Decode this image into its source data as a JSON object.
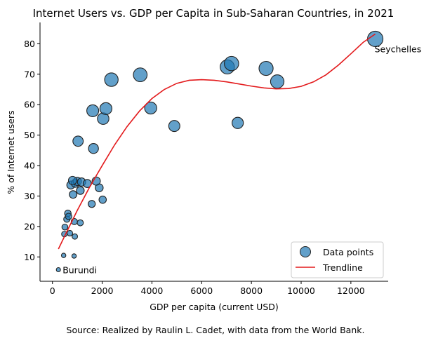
{
  "chart_data": {
    "type": "scatter",
    "title": "Internet Users vs. GDP per Capita in Sub-Saharan Countries, in 2021",
    "xlabel": "GDP per capita (current USD)",
    "ylabel": "% of Internet users",
    "xlim": [
      -500,
      13500
    ],
    "ylim": [
      2,
      87
    ],
    "xticks": [
      0,
      2000,
      4000,
      6000,
      8000,
      10000,
      12000
    ],
    "yticks": [
      10,
      20,
      30,
      40,
      50,
      60,
      70,
      80
    ],
    "grid": false,
    "legend_position": "lower-right",
    "colors": {
      "points": "#1f77b4",
      "point_edge": "#222222",
      "trendline": "#e31a1c"
    },
    "series": [
      {
        "name": "Data points",
        "kind": "scatter",
        "points": [
          {
            "x": 240,
            "y": 5.8
          },
          {
            "x": 450,
            "y": 10.5
          },
          {
            "x": 870,
            "y": 10.3
          },
          {
            "x": 480,
            "y": 17.5
          },
          {
            "x": 700,
            "y": 17.8
          },
          {
            "x": 900,
            "y": 16.7
          },
          {
            "x": 500,
            "y": 19.8
          },
          {
            "x": 580,
            "y": 22.4
          },
          {
            "x": 880,
            "y": 21.6
          },
          {
            "x": 1120,
            "y": 21.2
          },
          {
            "x": 620,
            "y": 24.3
          },
          {
            "x": 650,
            "y": 23.3
          },
          {
            "x": 830,
            "y": 30.5
          },
          {
            "x": 1580,
            "y": 27.4
          },
          {
            "x": 2020,
            "y": 28.8
          },
          {
            "x": 1120,
            "y": 31.8
          },
          {
            "x": 1880,
            "y": 32.7
          },
          {
            "x": 740,
            "y": 33.6
          },
          {
            "x": 920,
            "y": 34.2
          },
          {
            "x": 1000,
            "y": 34.8
          },
          {
            "x": 810,
            "y": 35.1
          },
          {
            "x": 1170,
            "y": 34.6
          },
          {
            "x": 1400,
            "y": 34.1
          },
          {
            "x": 1760,
            "y": 34.9
          },
          {
            "x": 1650,
            "y": 45.6
          },
          {
            "x": 1030,
            "y": 48.0
          },
          {
            "x": 2040,
            "y": 55.4
          },
          {
            "x": 1620,
            "y": 58.0
          },
          {
            "x": 2150,
            "y": 58.7
          },
          {
            "x": 2370,
            "y": 68.2
          },
          {
            "x": 3530,
            "y": 69.8
          },
          {
            "x": 3950,
            "y": 58.9
          },
          {
            "x": 4900,
            "y": 53.0
          },
          {
            "x": 7030,
            "y": 72.4
          },
          {
            "x": 7200,
            "y": 73.5
          },
          {
            "x": 7450,
            "y": 54.0
          },
          {
            "x": 8590,
            "y": 71.9
          },
          {
            "x": 9040,
            "y": 67.6
          },
          {
            "x": 12980,
            "y": 81.6
          }
        ]
      },
      {
        "name": "Trendline",
        "kind": "line",
        "points": [
          {
            "x": 240,
            "y": 12.6
          },
          {
            "x": 500,
            "y": 17.0
          },
          {
            "x": 1000,
            "y": 25.3
          },
          {
            "x": 1500,
            "y": 33.0
          },
          {
            "x": 2000,
            "y": 40.0
          },
          {
            "x": 2500,
            "y": 46.8
          },
          {
            "x": 3000,
            "y": 52.8
          },
          {
            "x": 3500,
            "y": 57.9
          },
          {
            "x": 4000,
            "y": 62.0
          },
          {
            "x": 4500,
            "y": 65.0
          },
          {
            "x": 5000,
            "y": 67.0
          },
          {
            "x": 5500,
            "y": 68.0
          },
          {
            "x": 6000,
            "y": 68.2
          },
          {
            "x": 6500,
            "y": 68.0
          },
          {
            "x": 7000,
            "y": 67.5
          },
          {
            "x": 7500,
            "y": 66.8
          },
          {
            "x": 8000,
            "y": 66.1
          },
          {
            "x": 8500,
            "y": 65.5
          },
          {
            "x": 9000,
            "y": 65.2
          },
          {
            "x": 9500,
            "y": 65.3
          },
          {
            "x": 10000,
            "y": 66.0
          },
          {
            "x": 10500,
            "y": 67.5
          },
          {
            "x": 11000,
            "y": 69.8
          },
          {
            "x": 11500,
            "y": 73.0
          },
          {
            "x": 12000,
            "y": 76.7
          },
          {
            "x": 12500,
            "y": 80.5
          },
          {
            "x": 12980,
            "y": 83.2
          }
        ]
      }
    ],
    "annotations": [
      {
        "text": "Burundi",
        "x": 240,
        "y": 5.8
      },
      {
        "text": "Seychelles",
        "x": 12980,
        "y": 81.6
      }
    ]
  },
  "caption": "Source: Realized by Raulin L. Cadet, with data from the World Bank."
}
